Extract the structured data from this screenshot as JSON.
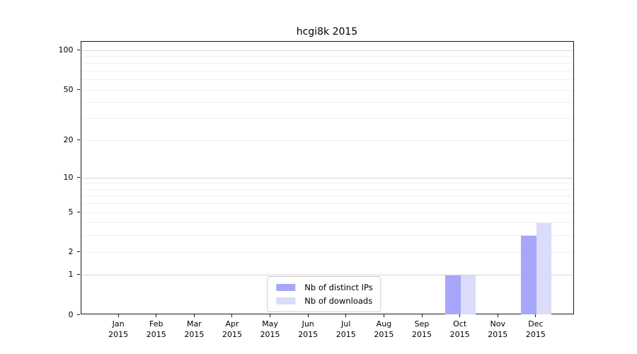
{
  "title": "hcgi8k 2015",
  "colors": {
    "background": "#ffffff",
    "axis": "#1a1a1a",
    "text": "#000000",
    "major_grid": "#d6d6d6",
    "minor_grid": "#f0f0f0",
    "legend_border": "#cccccc",
    "series_distinct_ips": "#a6a6fa",
    "series_downloads": "#dbdbfa"
  },
  "chart_data": {
    "type": "bar",
    "title": "hcgi8k 2015",
    "categories": [
      "Jan 2015",
      "Feb 2015",
      "Mar 2015",
      "Apr 2015",
      "May 2015",
      "Jun 2015",
      "Jul 2015",
      "Aug 2015",
      "Sep 2015",
      "Oct 2015",
      "Nov 2015",
      "Dec 2015"
    ],
    "x_tick_line1": [
      "Jan",
      "Feb",
      "Mar",
      "Apr",
      "May",
      "Jun",
      "Jul",
      "Aug",
      "Sep",
      "Oct",
      "Nov",
      "Dec"
    ],
    "x_tick_line2": [
      "2015",
      "2015",
      "2015",
      "2015",
      "2015",
      "2015",
      "2015",
      "2015",
      "2015",
      "2015",
      "2015",
      "2015"
    ],
    "series": [
      {
        "name": "Nb of distinct IPs",
        "color": "#a6a6fa",
        "values": [
          0,
          0,
          0,
          0,
          0,
          0,
          0,
          0,
          0,
          1,
          0,
          3
        ]
      },
      {
        "name": "Nb of downloads",
        "color": "#dbdbfa",
        "values": [
          0,
          0,
          0,
          0,
          0,
          0,
          0,
          0,
          0,
          1,
          0,
          4
        ]
      }
    ],
    "xlabel": "",
    "ylabel": "",
    "y_scale": "log1p",
    "ylim": [
      0,
      117
    ],
    "y_ticks": [
      0,
      1,
      2,
      5,
      10,
      20,
      50,
      100
    ],
    "y_major_gridlines": [
      1,
      10,
      100
    ],
    "y_minor_gridlines": [
      2,
      3,
      4,
      5,
      6,
      7,
      8,
      9,
      20,
      30,
      40,
      50,
      60,
      70,
      80,
      90
    ],
    "grid": true,
    "legend_position": "lower center"
  }
}
